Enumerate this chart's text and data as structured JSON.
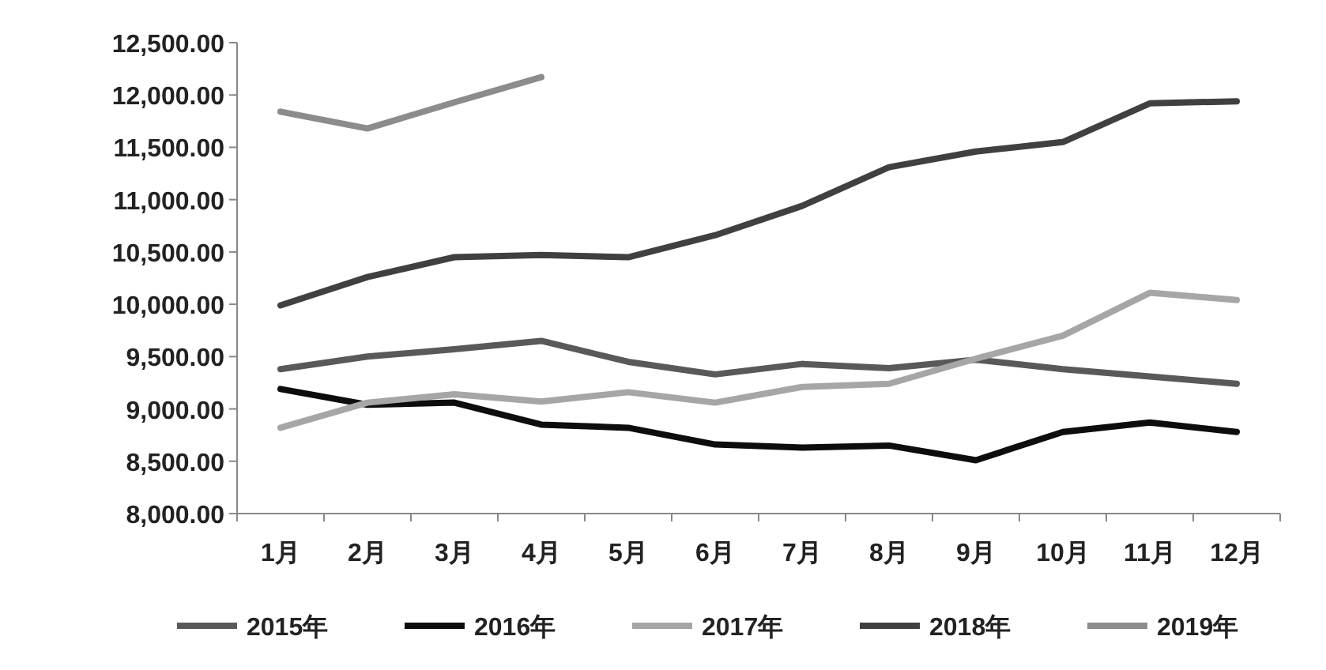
{
  "chart_data": {
    "type": "line",
    "categories": [
      "1月",
      "2月",
      "3月",
      "4月",
      "5月",
      "6月",
      "7月",
      "8月",
      "9月",
      "10月",
      "11月",
      "12月"
    ],
    "series": [
      {
        "name": "2015年",
        "color": "#595959",
        "values": [
          9380,
          9500,
          9570,
          9650,
          9450,
          9330,
          9430,
          9390,
          9470,
          9380,
          9310,
          9240
        ]
      },
      {
        "name": "2016年",
        "color": "#0d0d0d",
        "values": [
          9190,
          9040,
          9060,
          8850,
          8820,
          8660,
          8630,
          8650,
          8510,
          8780,
          8870,
          8780
        ]
      },
      {
        "name": "2017年",
        "color": "#a6a6a6",
        "values": [
          8820,
          9060,
          9140,
          9070,
          9160,
          9060,
          9210,
          9240,
          9480,
          9700,
          10110,
          10040
        ]
      },
      {
        "name": "2018年",
        "color": "#404040",
        "values": [
          9990,
          10260,
          10450,
          10470,
          10450,
          10660,
          10940,
          11310,
          11460,
          11550,
          11920,
          11940
        ]
      },
      {
        "name": "2019年",
        "color": "#8c8c8c",
        "values": [
          11840,
          11680,
          11930,
          12170,
          null,
          null,
          null,
          null,
          null,
          null,
          null,
          null
        ]
      }
    ],
    "ylim": [
      8000,
      12500
    ],
    "yticks": [
      {
        "value": 8000,
        "label": "8,000.00"
      },
      {
        "value": 8500,
        "label": "8,500.00"
      },
      {
        "value": 9000,
        "label": "9,000.00"
      },
      {
        "value": 9500,
        "label": "9,500.00"
      },
      {
        "value": 10000,
        "label": "10,000.00"
      },
      {
        "value": 10500,
        "label": "10,500.00"
      },
      {
        "value": 11000,
        "label": "11,000.00"
      },
      {
        "value": 11500,
        "label": "11,500.00"
      },
      {
        "value": 12000,
        "label": "12,000.00"
      },
      {
        "value": 12500,
        "label": "12,500.00"
      }
    ],
    "grid": false,
    "legend": "bottom",
    "marker": "none",
    "line_style": "solid"
  }
}
